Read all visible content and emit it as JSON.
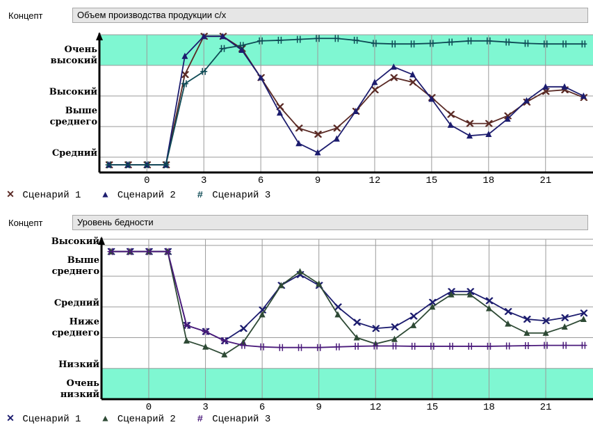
{
  "chart_data": [
    {
      "type": "line",
      "concept_label": "Концепт",
      "concept_name": "Объем производства продукции с/х",
      "x_ticks": [
        "0",
        "3",
        "6",
        "9",
        "12",
        "15",
        "18",
        "21"
      ],
      "xlim": [
        -2.5,
        23.5
      ],
      "y_levels": [
        "Средний",
        "Выше среднего",
        "Высокий",
        "Очень высокий"
      ],
      "ylim": [
        -0.5,
        4
      ],
      "highlight_band": [
        3,
        4
      ],
      "highlight_color": "#7ff7d2",
      "series": [
        {
          "name": "Сценарий 1",
          "color": "#5a2a25",
          "marker": "x",
          "x": [
            -2,
            -1,
            0,
            1,
            2,
            3,
            4,
            5,
            6,
            7,
            8,
            9,
            10,
            11,
            12,
            13,
            14,
            15,
            16,
            17,
            18,
            19,
            20,
            21,
            22,
            23
          ],
          "y": [
            -0.25,
            -0.25,
            -0.25,
            -0.25,
            2.7,
            3.95,
            3.95,
            3.55,
            2.6,
            1.65,
            0.95,
            0.75,
            0.95,
            1.5,
            2.2,
            2.6,
            2.45,
            1.95,
            1.4,
            1.1,
            1.1,
            1.35,
            1.8,
            2.15,
            2.2,
            1.95
          ]
        },
        {
          "name": "Сценарий 2",
          "color": "#1c1c6e",
          "marker": "triangle",
          "x": [
            -2,
            -1,
            0,
            1,
            2,
            3,
            4,
            5,
            6,
            7,
            8,
            9,
            10,
            11,
            12,
            13,
            14,
            15,
            16,
            17,
            18,
            19,
            20,
            21,
            22,
            23
          ],
          "y": [
            -0.25,
            -0.25,
            -0.25,
            -0.25,
            3.3,
            3.95,
            3.95,
            3.5,
            2.6,
            1.45,
            0.45,
            0.15,
            0.6,
            1.5,
            2.45,
            2.95,
            2.7,
            1.9,
            1.05,
            0.7,
            0.75,
            1.25,
            1.85,
            2.3,
            2.3,
            2.0
          ]
        },
        {
          "name": "Сценарий 3",
          "color": "#0e4a55",
          "marker": "plus",
          "x": [
            -2,
            -1,
            0,
            1,
            2,
            3,
            4,
            5,
            6,
            7,
            8,
            9,
            10,
            11,
            12,
            13,
            14,
            15,
            16,
            17,
            18,
            19,
            20,
            21,
            22,
            23
          ],
          "y": [
            -0.25,
            -0.25,
            -0.25,
            -0.25,
            2.4,
            2.8,
            3.55,
            3.65,
            3.8,
            3.82,
            3.85,
            3.88,
            3.88,
            3.82,
            3.72,
            3.7,
            3.7,
            3.72,
            3.76,
            3.8,
            3.8,
            3.76,
            3.72,
            3.7,
            3.7,
            3.7
          ]
        }
      ]
    },
    {
      "type": "line",
      "concept_label": "Концепт",
      "concept_name": "Уровень бедности",
      "x_ticks": [
        "0",
        "3",
        "6",
        "9",
        "12",
        "15",
        "18",
        "21"
      ],
      "xlim": [
        -2.5,
        23.5
      ],
      "y_levels": [
        "Очень низкий",
        "Низкий",
        "Ниже среднего",
        "Средний",
        "Выше среднего",
        "Высокий"
      ],
      "ylim": [
        0,
        5.2
      ],
      "highlight_band": [
        0,
        1
      ],
      "highlight_color": "#7ff7d2",
      "series": [
        {
          "name": "Сценарий 1",
          "color": "#1c1c6e",
          "marker": "x",
          "x": [
            -2,
            -1,
            0,
            1,
            2,
            3,
            4,
            5,
            6,
            7,
            8,
            9,
            10,
            11,
            12,
            13,
            14,
            15,
            16,
            17,
            18,
            19,
            20,
            21,
            22,
            23
          ],
          "y": [
            4.8,
            4.8,
            4.8,
            4.8,
            2.4,
            2.2,
            1.9,
            2.3,
            2.9,
            3.7,
            4.05,
            3.7,
            3.0,
            2.5,
            2.3,
            2.35,
            2.7,
            3.15,
            3.5,
            3.5,
            3.2,
            2.85,
            2.6,
            2.55,
            2.65,
            2.8
          ]
        },
        {
          "name": "Сценарий 2",
          "color": "#2e4a35",
          "marker": "triangle",
          "x": [
            -2,
            -1,
            0,
            1,
            2,
            3,
            4,
            5,
            6,
            7,
            8,
            9,
            10,
            11,
            12,
            13,
            14,
            15,
            16,
            17,
            18,
            19,
            20,
            21,
            22,
            23
          ],
          "y": [
            4.8,
            4.8,
            4.8,
            4.8,
            1.9,
            1.7,
            1.45,
            1.85,
            2.75,
            3.7,
            4.15,
            3.75,
            2.75,
            2.0,
            1.8,
            1.95,
            2.4,
            3.0,
            3.4,
            3.4,
            2.95,
            2.45,
            2.15,
            2.15,
            2.35,
            2.6
          ]
        },
        {
          "name": "Сценарий 3",
          "color": "#4a1a7a",
          "marker": "plus",
          "x": [
            -2,
            -1,
            0,
            1,
            2,
            3,
            4,
            5,
            6,
            7,
            8,
            9,
            10,
            11,
            12,
            13,
            14,
            15,
            16,
            17,
            18,
            19,
            20,
            21,
            22,
            23
          ],
          "y": [
            4.8,
            4.8,
            4.8,
            4.8,
            2.4,
            2.2,
            1.9,
            1.75,
            1.7,
            1.68,
            1.68,
            1.68,
            1.7,
            1.72,
            1.73,
            1.73,
            1.72,
            1.72,
            1.72,
            1.72,
            1.72,
            1.73,
            1.74,
            1.75,
            1.75,
            1.75
          ]
        }
      ]
    }
  ]
}
